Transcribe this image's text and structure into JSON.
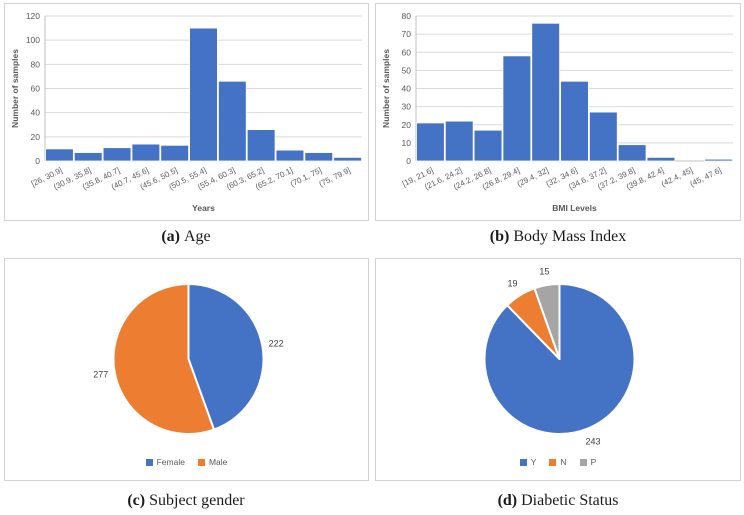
{
  "figure": {
    "captions": [
      {
        "label": "(a)",
        "text": "Age"
      },
      {
        "label": "(b)",
        "text": "Body Mass Index"
      },
      {
        "label": "(c)",
        "text": "Subject gender"
      },
      {
        "label": "(d)",
        "text": "Diabetic Status"
      }
    ]
  },
  "colors": {
    "accent_blue": "#4472C4",
    "accent_orange": "#ED7D31",
    "accent_gray": "#A5A5A5",
    "gridline": "#D9D9D9",
    "axis_line": "#BFBFBF",
    "label_text": "#595959"
  },
  "chart_data": [
    {
      "type": "bar",
      "title": "",
      "categories": [
        "[26, 30.9]",
        "(30.9, 35.8]",
        "(35.8, 40.7]",
        "(40.7, 45.6]",
        "(45.6, 50.5]",
        "(50.5, 55.4]",
        "(55.4, 60.3]",
        "(60.3, 65.2]",
        "(65.2, 70.1]",
        "(70.1, 75]",
        "(75, 79.9]"
      ],
      "values": [
        10,
        7,
        11,
        14,
        13,
        110,
        66,
        26,
        9,
        7,
        3
      ],
      "xlabel": "Years",
      "ylabel": "Number of samples",
      "ylim": [
        0,
        120
      ],
      "ytick_step": 20,
      "grid": true,
      "bar_color": "#4472C4"
    },
    {
      "type": "bar",
      "title": "",
      "categories": [
        "[19, 21.6]",
        "(21.6, 24.2]",
        "(24.2, 26.8]",
        "(26.8, 29.4]",
        "(29.4, 32]",
        "(32, 34.6]",
        "(34.6, 37.2]",
        "(37.2, 39.8]",
        "(39.8, 42.4]",
        "(42.4, 45]",
        "(45, 47.6]"
      ],
      "values": [
        21,
        22,
        17,
        58,
        76,
        44,
        27,
        9,
        2,
        0,
        1
      ],
      "xlabel": "BMI Levels",
      "ylabel": "Number of samples",
      "ylim": [
        0,
        80
      ],
      "ytick_step": 10,
      "grid": true,
      "bar_color": "#4472C4"
    },
    {
      "type": "pie",
      "title": "",
      "labels": [
        "Female",
        "Male"
      ],
      "values": [
        222,
        277
      ],
      "slice_colors": [
        "#4472C4",
        "#ED7D31"
      ],
      "start_angle_deg": 0,
      "direction": "clockwise",
      "legend_position": "bottom"
    },
    {
      "type": "pie",
      "title": "",
      "labels": [
        "Y",
        "N",
        "P"
      ],
      "values": [
        243,
        19,
        15
      ],
      "slice_colors": [
        "#4472C4",
        "#ED7D31",
        "#A5A5A5"
      ],
      "start_angle_deg": 0,
      "direction": "clockwise",
      "legend_position": "bottom"
    }
  ]
}
